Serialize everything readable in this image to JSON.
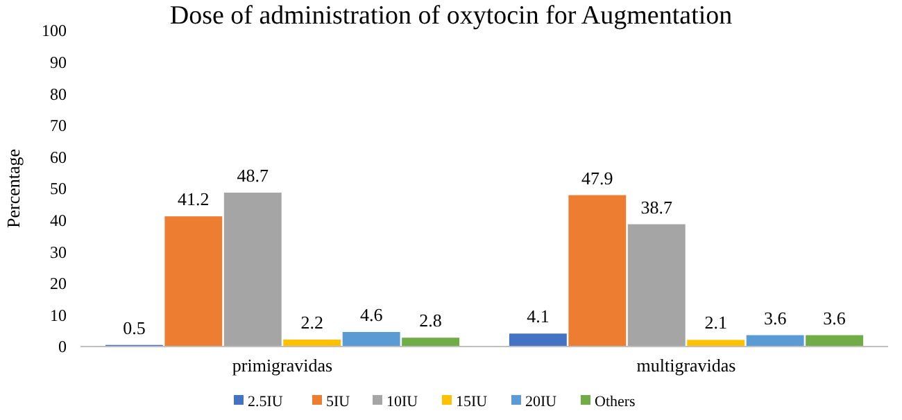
{
  "chart_data": {
    "type": "bar",
    "title": "Dose of administration of oxytocin for Augmentation",
    "ylabel": "Percentage",
    "categories": [
      "primigravidas",
      "multigravidas"
    ],
    "series": [
      {
        "name": "2.5IU",
        "color": "#4472c4",
        "values": [
          0.5,
          4.1
        ]
      },
      {
        "name": "5IU",
        "color": "#ed7d31",
        "values": [
          41.2,
          47.9
        ]
      },
      {
        "name": "10IU",
        "color": "#a5a5a5",
        "values": [
          48.7,
          38.7
        ]
      },
      {
        "name": "15IU",
        "color": "#ffc000",
        "values": [
          2.2,
          2.1
        ]
      },
      {
        "name": "20IU",
        "color": "#5b9bd5",
        "values": [
          4.6,
          3.6
        ]
      },
      {
        "name": "Others",
        "color": "#70ad47",
        "values": [
          2.8,
          3.6
        ]
      }
    ],
    "ylim": [
      0,
      100
    ],
    "yticks": [
      0,
      10,
      20,
      30,
      40,
      50,
      60,
      70,
      80,
      90,
      100
    ],
    "data_labels": true,
    "legend": "bottom",
    "grid": false
  }
}
